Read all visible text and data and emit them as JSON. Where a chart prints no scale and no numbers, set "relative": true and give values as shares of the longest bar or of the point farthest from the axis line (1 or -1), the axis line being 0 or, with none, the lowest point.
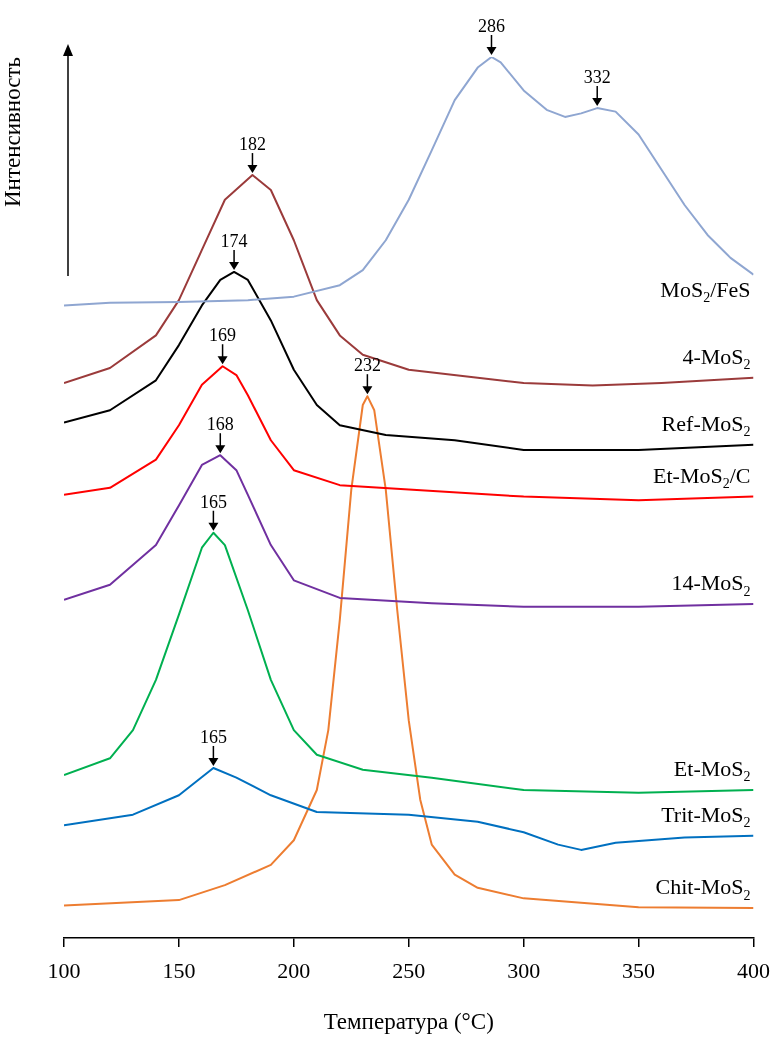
{
  "chart_data": {
    "type": "line",
    "relative": true,
    "xlabel": "Температура (°C)",
    "ylabel": "Интенсивность",
    "xlim": [
      100,
      400
    ],
    "xticks": [
      100,
      150,
      200,
      250,
      300,
      350,
      400
    ],
    "legend": false,
    "series": [
      {
        "name": "MoS$_{2}$/FeS",
        "color": "#8fa6d1",
        "x": [
          100,
          120,
          150,
          180,
          200,
          220,
          230,
          240,
          250,
          260,
          270,
          280,
          286,
          290,
          300,
          310,
          318,
          325,
          332,
          340,
          350,
          360,
          370,
          380,
          390,
          400
        ],
        "values": [
          0.718,
          0.721,
          0.722,
          0.724,
          0.728,
          0.741,
          0.758,
          0.792,
          0.838,
          0.894,
          0.951,
          0.988,
          1,
          0.994,
          0.962,
          0.94,
          0.932,
          0.936,
          0.942,
          0.938,
          0.912,
          0.872,
          0.832,
          0.798,
          0.772,
          0.753
        ]
      },
      {
        "name": "4-MoS$_{2}$",
        "color": "#9b3b3b",
        "x": [
          100,
          120,
          140,
          150,
          160,
          170,
          182,
          190,
          200,
          210,
          220,
          230,
          250,
          280,
          300,
          330,
          360,
          400
        ],
        "values": [
          0.63,
          0.647,
          0.684,
          0.724,
          0.781,
          0.838,
          0.866,
          0.849,
          0.792,
          0.724,
          0.684,
          0.662,
          0.645,
          0.636,
          0.63,
          0.627,
          0.63,
          0.636
        ]
      },
      {
        "name": "Ref-MoS$_{2}$",
        "color": "#000000",
        "x": [
          100,
          120,
          140,
          150,
          160,
          168,
          174,
          180,
          190,
          200,
          210,
          220,
          240,
          270,
          300,
          350,
          400
        ],
        "values": [
          0.585,
          0.599,
          0.633,
          0.673,
          0.718,
          0.747,
          0.756,
          0.747,
          0.701,
          0.645,
          0.605,
          0.582,
          0.571,
          0.565,
          0.554,
          0.554,
          0.56
        ]
      },
      {
        "name": "Et-MoS$_{2}$/C",
        "color": "#ff0000",
        "x": [
          100,
          120,
          140,
          150,
          160,
          169,
          175,
          180,
          190,
          200,
          220,
          250,
          300,
          350,
          400
        ],
        "values": [
          0.503,
          0.511,
          0.543,
          0.582,
          0.628,
          0.649,
          0.639,
          0.616,
          0.565,
          0.531,
          0.514,
          0.509,
          0.501,
          0.497,
          0.501
        ]
      },
      {
        "name": "14-MoS$_{2}$",
        "color": "#7030a0",
        "x": [
          100,
          120,
          140,
          150,
          160,
          168,
          175,
          180,
          190,
          200,
          220,
          260,
          300,
          350,
          400
        ],
        "values": [
          0.384,
          0.401,
          0.446,
          0.491,
          0.537,
          0.548,
          0.531,
          0.503,
          0.446,
          0.406,
          0.386,
          0.38,
          0.376,
          0.376,
          0.379
        ]
      },
      {
        "name": "Et-MoS$_{2}$",
        "color": "#00b050",
        "x": [
          100,
          120,
          130,
          140,
          150,
          160,
          165,
          170,
          180,
          190,
          200,
          210,
          230,
          260,
          300,
          350,
          400
        ],
        "values": [
          0.185,
          0.204,
          0.236,
          0.293,
          0.367,
          0.443,
          0.46,
          0.446,
          0.372,
          0.293,
          0.236,
          0.208,
          0.191,
          0.182,
          0.168,
          0.165,
          0.168
        ]
      },
      {
        "name": "Trit-MoS$_{2}$",
        "color": "#0070c0",
        "x": [
          100,
          130,
          150,
          165,
          175,
          190,
          210,
          250,
          280,
          300,
          315,
          325,
          340,
          370,
          400
        ],
        "values": [
          0.128,
          0.14,
          0.162,
          0.193,
          0.182,
          0.162,
          0.143,
          0.14,
          0.132,
          0.12,
          0.106,
          0.1,
          0.108,
          0.114,
          0.116
        ]
      },
      {
        "name": "Chit-MoS$_{2}$",
        "color": "#ed7d31",
        "x": [
          100,
          150,
          170,
          190,
          200,
          210,
          215,
          220,
          225,
          230,
          232,
          235,
          240,
          245,
          250,
          255,
          260,
          270,
          280,
          300,
          350,
          400
        ],
        "values": [
          0.037,
          0.043,
          0.06,
          0.083,
          0.111,
          0.168,
          0.236,
          0.361,
          0.509,
          0.605,
          0.615,
          0.599,
          0.509,
          0.372,
          0.247,
          0.157,
          0.106,
          0.072,
          0.057,
          0.045,
          0.035,
          0.034
        ]
      }
    ],
    "annotations": [
      {
        "text": "286",
        "x": 286,
        "y": 1
      },
      {
        "text": "332",
        "x": 332,
        "y": 0.942
      },
      {
        "text": "182",
        "x": 182,
        "y": 0.866
      },
      {
        "text": "174",
        "x": 174,
        "y": 0.756
      },
      {
        "text": "169",
        "x": 169,
        "y": 0.649
      },
      {
        "text": "168",
        "x": 168,
        "y": 0.548
      },
      {
        "text": "165",
        "x": 165,
        "y": 0.46
      },
      {
        "text": "165",
        "x": 165,
        "y": 0.193
      },
      {
        "text": "232",
        "x": 232,
        "y": 0.615
      }
    ]
  }
}
